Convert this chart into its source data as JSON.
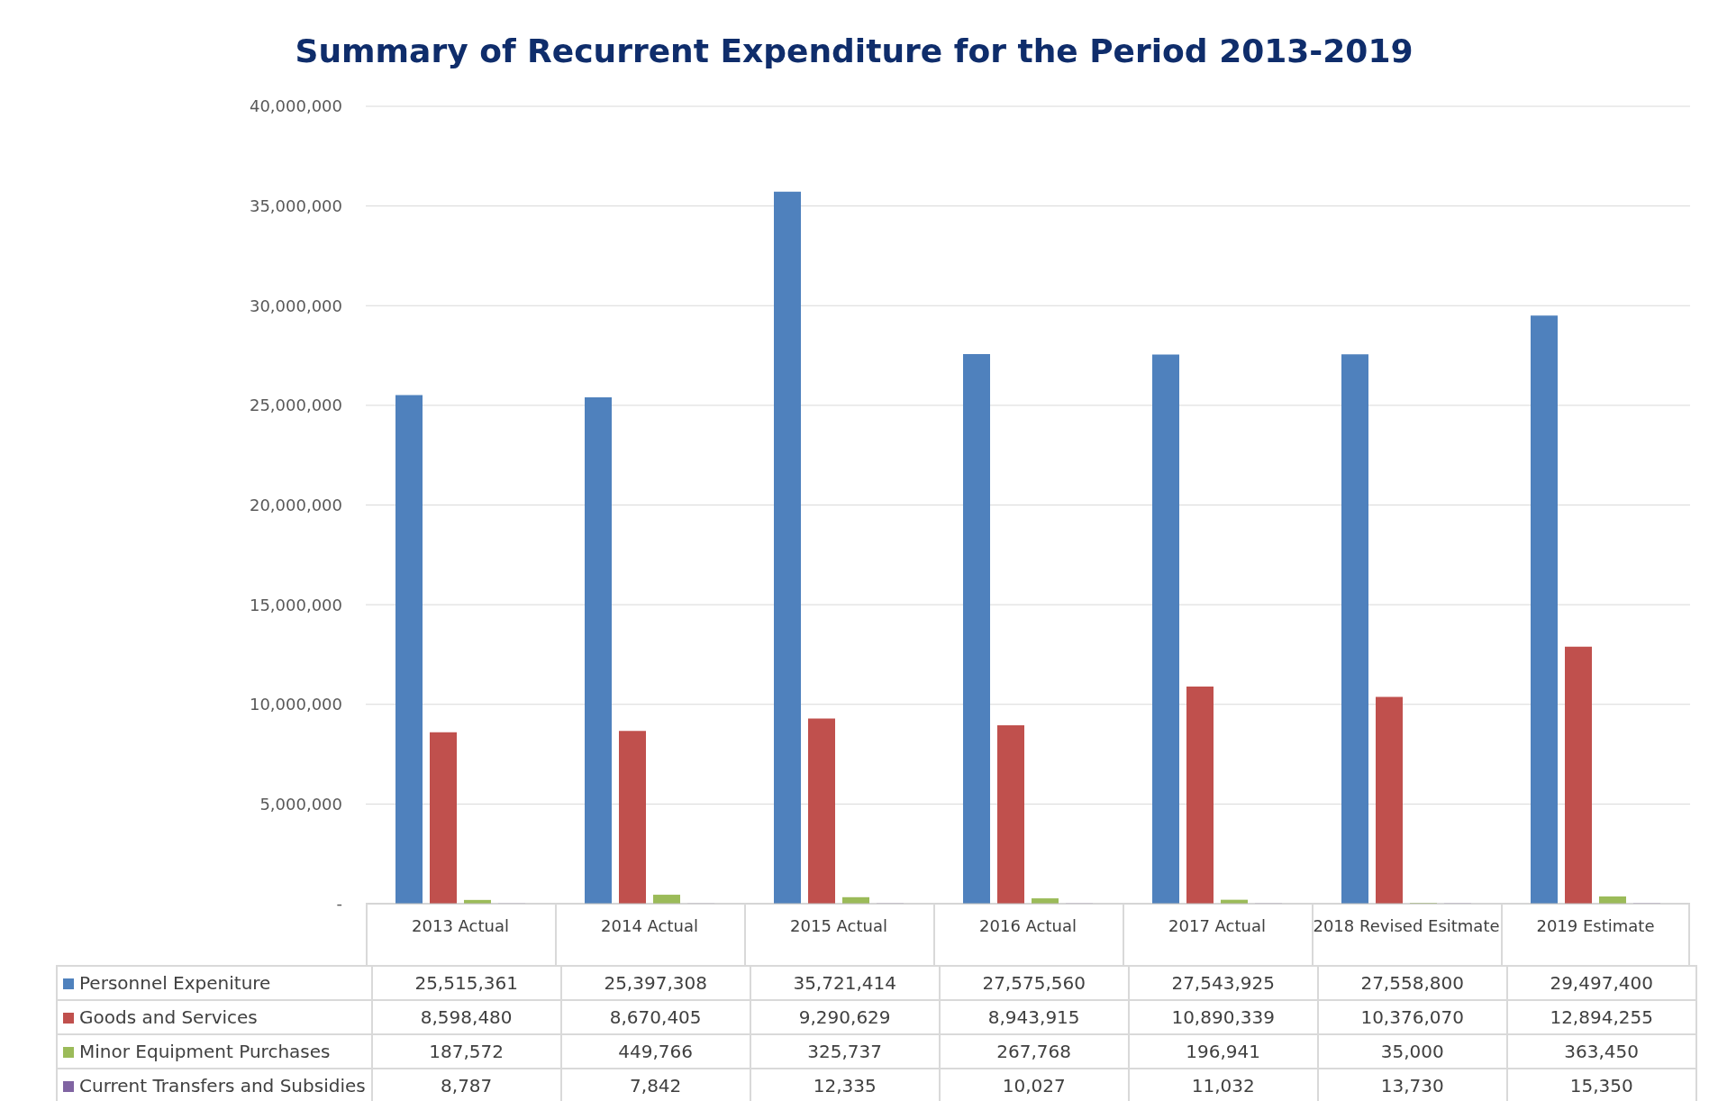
{
  "chart_data": {
    "type": "bar",
    "title": "Summary of Recurrent Expenditure for the Period 2013-2019",
    "categories": [
      "2013 Actual",
      "2014 Actual",
      "2015 Actual",
      "2016 Actual",
      "2017 Actual",
      "2018 Revised Esitmate",
      "2019 Estimate"
    ],
    "series": [
      {
        "name": "Personnel Expeniture",
        "color": "#4f81bd",
        "values": [
          25515361,
          25397308,
          35721414,
          27575560,
          27543925,
          27558800,
          29497400
        ],
        "value_labels": [
          "25,515,361",
          "25,397,308",
          "35,721,414",
          "27,575,560",
          "27,543,925",
          "27,558,800",
          "29,497,400"
        ]
      },
      {
        "name": "Goods and Services",
        "color": "#c0504d",
        "values": [
          8598480,
          8670405,
          9290629,
          8943915,
          10890339,
          10376070,
          12894255
        ],
        "value_labels": [
          "8,598,480",
          "8,670,405",
          "9,290,629",
          "8,943,915",
          "10,890,339",
          "10,376,070",
          "12,894,255"
        ]
      },
      {
        "name": "Minor Equipment Purchases",
        "color": "#9bbb59",
        "values": [
          187572,
          449766,
          325737,
          267768,
          196941,
          35000,
          363450
        ],
        "value_labels": [
          "187,572",
          "449,766",
          "325,737",
          "267,768",
          "196,941",
          "35,000",
          "363,450"
        ]
      },
      {
        "name": "Current Transfers and Subsidies",
        "color": "#8064a2",
        "values": [
          8787,
          7842,
          12335,
          10027,
          11032,
          13730,
          15350
        ],
        "value_labels": [
          "8,787",
          "7,842",
          "12,335",
          "10,027",
          "11,032",
          "13,730",
          "15,350"
        ]
      }
    ],
    "ylim": [
      0,
      40000000
    ],
    "yticks": [
      {
        "value": 0,
        "label": "-"
      },
      {
        "value": 5000000,
        "label": "5,000,000"
      },
      {
        "value": 10000000,
        "label": "10,000,000"
      },
      {
        "value": 15000000,
        "label": "15,000,000"
      },
      {
        "value": 20000000,
        "label": "20,000,000"
      },
      {
        "value": 25000000,
        "label": "25,000,000"
      },
      {
        "value": 30000000,
        "label": "30,000,000"
      },
      {
        "value": 35000000,
        "label": "35,000,000"
      },
      {
        "value": 40000000,
        "label": "40,000,000"
      }
    ],
    "grid": "y",
    "legend": "bottom"
  }
}
